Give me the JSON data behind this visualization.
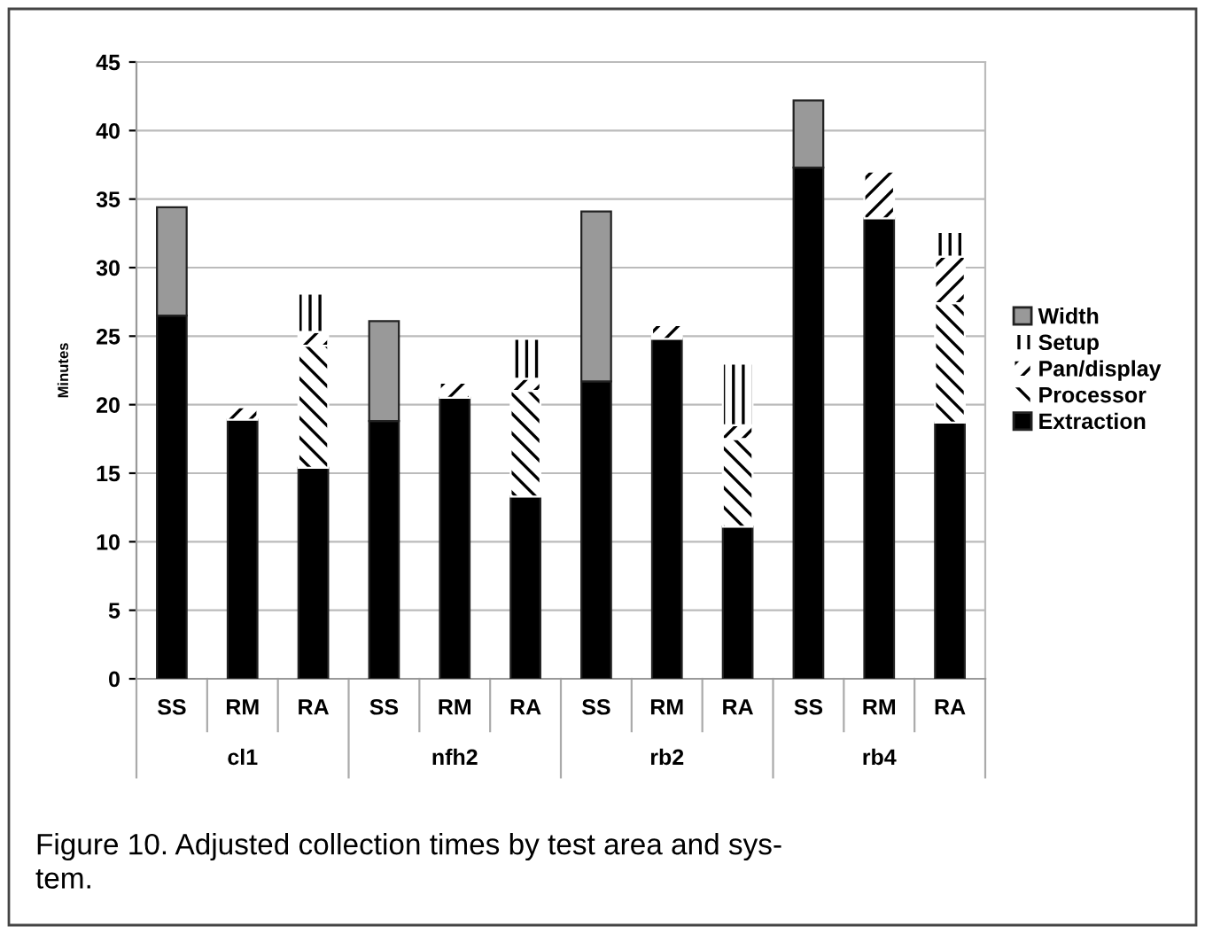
{
  "chart_data": {
    "type": "bar",
    "stacked": true,
    "ylabel": "Minutes",
    "categories": [
      "SS",
      "RM",
      "RA",
      "SS",
      "RM",
      "RA",
      "SS",
      "RM",
      "RA",
      "SS",
      "RM",
      "RA"
    ],
    "series": [
      {
        "name": "Extraction",
        "color": "#000000",
        "values": [
          26.5,
          18.9,
          15.4,
          18.8,
          20.5,
          13.3,
          21.7,
          24.8,
          11.1,
          37.3,
          33.6,
          18.7
        ]
      },
      {
        "name": "Processor",
        "color": "#ffffff",
        "values": [
          null,
          null,
          8.9,
          null,
          null,
          7.7,
          null,
          null,
          6.4,
          null,
          null,
          8.7
        ]
      },
      {
        "name": "Pan/display",
        "color": "#ffffff",
        "values": [
          null,
          0.9,
          1.0,
          null,
          1.1,
          0.9,
          null,
          1.0,
          1.0,
          null,
          3.4,
          3.4
        ]
      },
      {
        "name": "Setup",
        "color": "#ffffff",
        "values": [
          null,
          null,
          2.8,
          null,
          null,
          2.9,
          null,
          null,
          4.5,
          null,
          null,
          1.8
        ]
      },
      {
        "name": "Width",
        "color": "#999999",
        "values": [
          7.9,
          null,
          null,
          7.3,
          null,
          null,
          12.4,
          null,
          null,
          4.9,
          null,
          null
        ]
      }
    ],
    "ylim": [
      0,
      45
    ],
    "yticks": [
      0,
      5,
      10,
      15,
      20,
      25,
      30,
      35,
      40,
      45
    ],
    "grid": "y",
    "legend": "right",
    "annotations": [
      "cl1",
      "nfh2",
      "rb2",
      "rb4",
      "Figure 10. Adjusted collection times by test area and sys-\ntem."
    ]
  }
}
